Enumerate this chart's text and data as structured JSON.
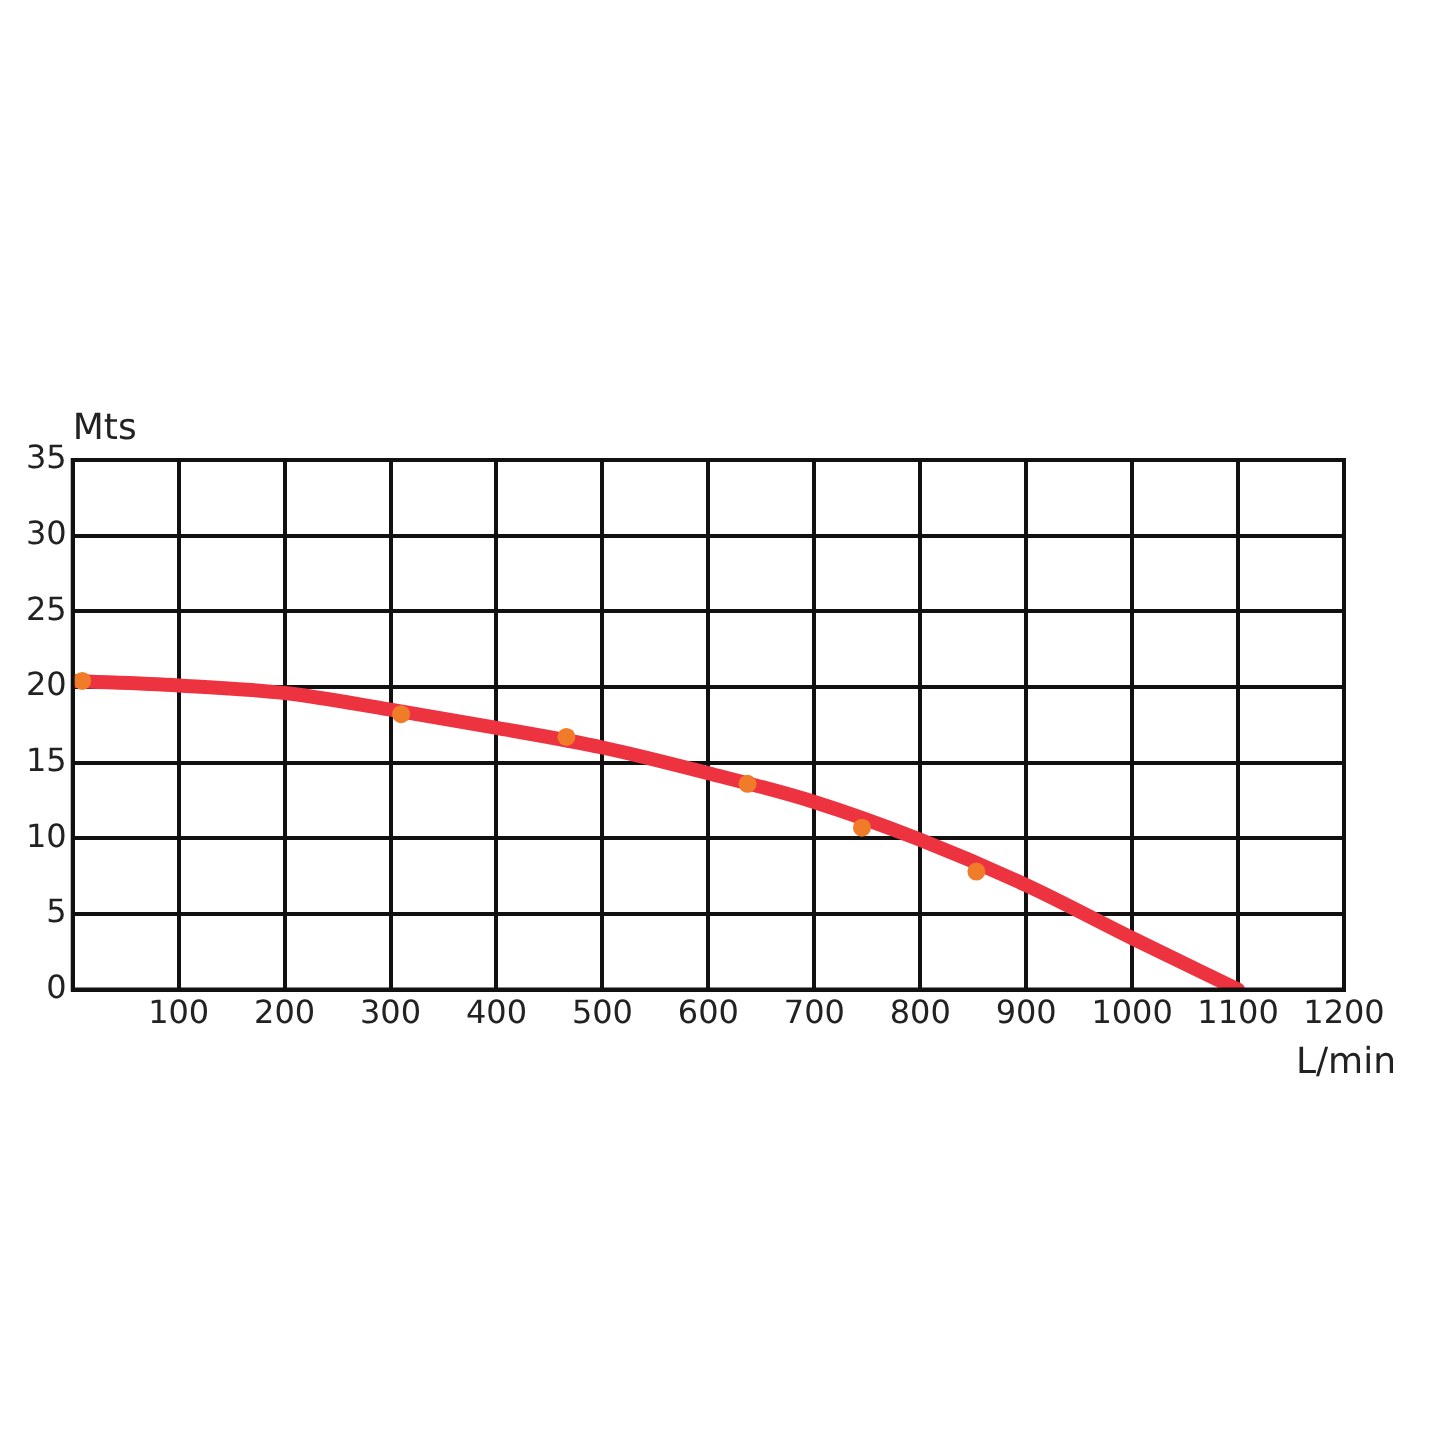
{
  "chart_data": {
    "type": "line",
    "xlabel": "L/min",
    "ylabel": "Mts",
    "series": [
      {
        "color": "#ee3340",
        "marker": "none",
        "x": [
          0,
          100,
          200,
          300,
          400,
          500,
          600,
          700,
          800,
          900,
          1000,
          1100
        ],
        "values": [
          20.4,
          20.1,
          19.6,
          18.5,
          17.3,
          16.0,
          14.3,
          12.4,
          9.9,
          6.9,
          3.4,
          0
        ]
      },
      {
        "type": "scatter",
        "color": "#f07c2a",
        "marker": "circle",
        "x": [
          9,
          310,
          466,
          637,
          745,
          853
        ],
        "values": [
          20.4,
          18.2,
          16.7,
          13.6,
          10.7,
          7.8
        ]
      }
    ],
    "xlim": [
      0,
      1200
    ],
    "xticks": [
      {
        "value": 0,
        "label": null
      },
      100,
      200,
      300,
      400,
      500,
      600,
      700,
      800,
      900,
      1000,
      1100,
      1200
    ],
    "ylim": [
      0,
      35
    ],
    "yticks": [
      0,
      5,
      10,
      15,
      20,
      25,
      30,
      35
    ],
    "grid": true,
    "legend": false
  }
}
